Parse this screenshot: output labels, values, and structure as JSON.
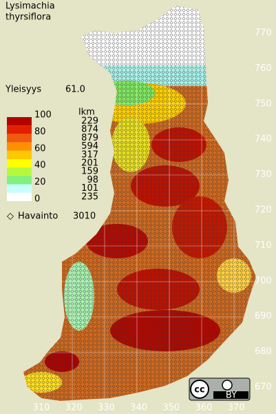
{
  "title": [
    "Lysimachia",
    "thyrsiflora"
  ],
  "frequency": {
    "label": "Yleisyys",
    "value": "61.0"
  },
  "legend": {
    "scale": [
      "100",
      "80",
      "60",
      "40",
      "20",
      "0"
    ],
    "count_header": "lkm",
    "counts": [
      229,
      874,
      879,
      594,
      317,
      201,
      159,
      98,
      101,
      235
    ],
    "colors": [
      "#b40000",
      "#e02000",
      "#f05a10",
      "#ff9000",
      "#ffc800",
      "#ffff00",
      "#b8f83c",
      "#80f080",
      "#c8ffff",
      "#ffffff"
    ]
  },
  "observations": {
    "label": "Havainto",
    "count": 3010
  },
  "y_axis": [
    770,
    760,
    750,
    740,
    730,
    720,
    710,
    700,
    690,
    680,
    670
  ],
  "x_axis": [
    310,
    320,
    330,
    340,
    350,
    360,
    370
  ],
  "license": "BY"
}
